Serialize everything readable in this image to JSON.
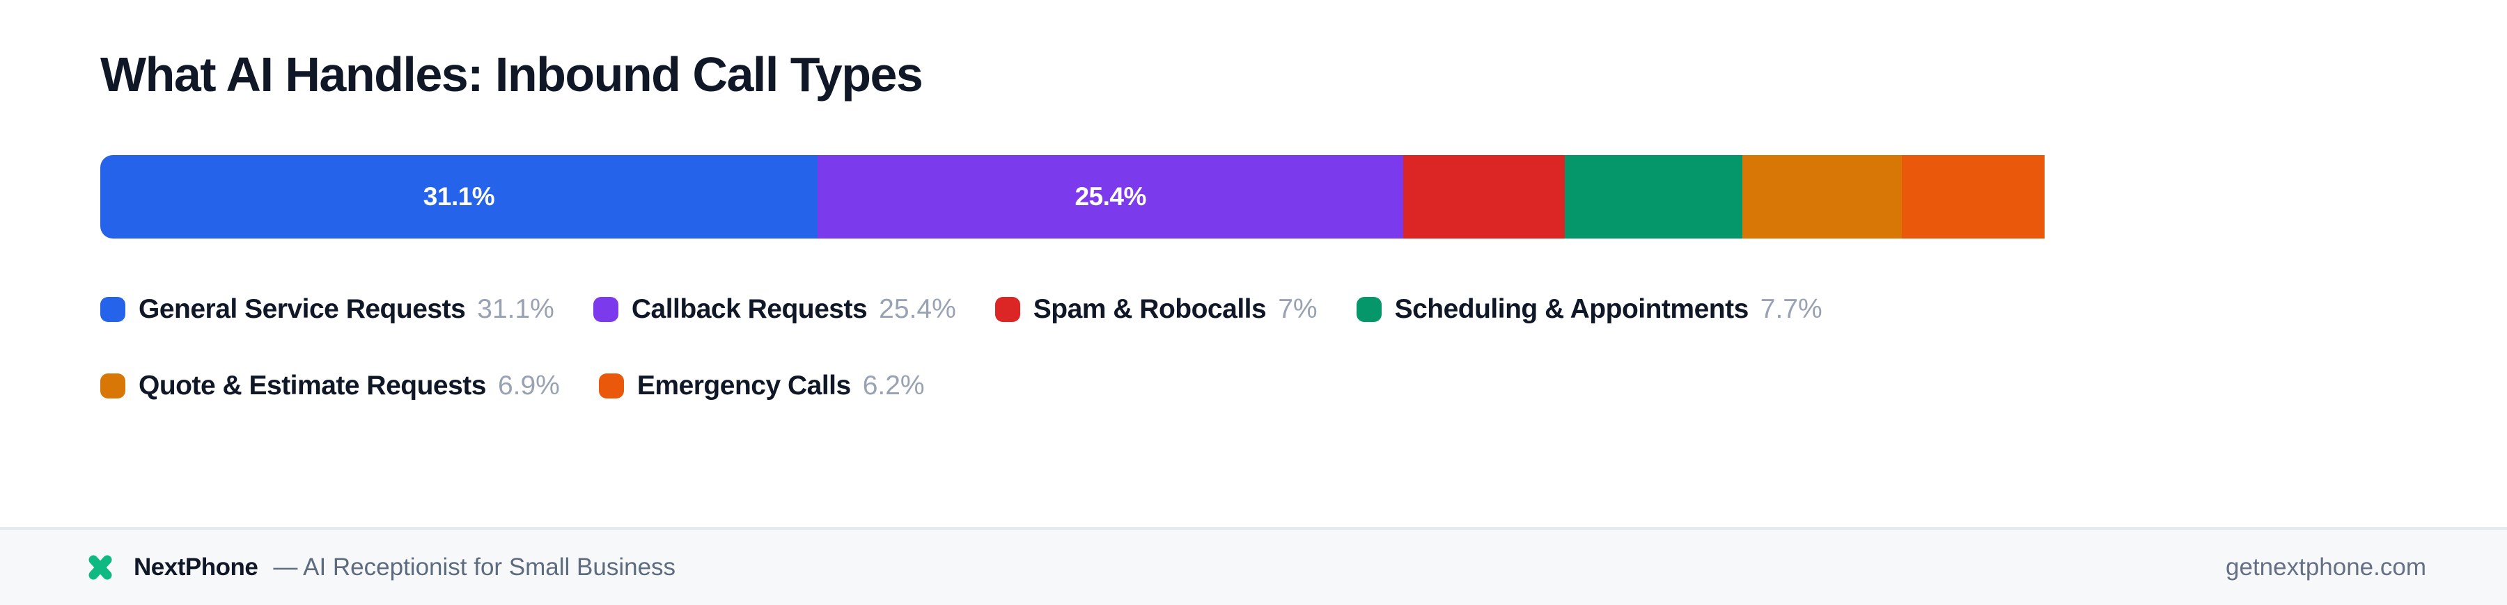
{
  "title": "What AI Handles: Inbound Call Types",
  "chart_data": {
    "type": "bar",
    "variant": "horizontal-stacked-single-bar",
    "title": "What AI Handles: Inbound Call Types",
    "unit": "%",
    "axis": "segments sized as percent of full content width; total 84.3% so bar ends short of right edge",
    "categories": [
      "General Service Requests",
      "Callback Requests",
      "Spam & Robocalls",
      "Scheduling & Appointments",
      "Quote & Estimate Requests",
      "Emergency Calls"
    ],
    "values": [
      31.1,
      25.4,
      7,
      7.7,
      6.9,
      6.2
    ],
    "segments": [
      {
        "label": "General Service Requests",
        "value": 31.1,
        "display": "31.1%",
        "color": "#2563eb",
        "bar_label_visible": true
      },
      {
        "label": "Callback Requests",
        "value": 25.4,
        "display": "25.4%",
        "color": "#7c3aed",
        "bar_label_visible": true
      },
      {
        "label": "Spam & Robocalls",
        "value": 7,
        "display": "7%",
        "color": "#dc2626",
        "bar_label_visible": false
      },
      {
        "label": "Scheduling & Appointments",
        "value": 7.7,
        "display": "7.7%",
        "color": "#059669",
        "bar_label_visible": false
      },
      {
        "label": "Quote & Estimate Requests",
        "value": 6.9,
        "display": "6.9%",
        "color": "#d97706",
        "bar_label_visible": false
      },
      {
        "label": "Emergency Calls",
        "value": 6.2,
        "display": "6.2%",
        "color": "#ea580c",
        "bar_label_visible": false
      }
    ],
    "legend_position": "below-bar, two rows (4 items then 2 items)"
  },
  "colors": {
    "title_text": "#101828",
    "legend_pct_text": "#98a2b3",
    "footer_bg": "#f7f8fa",
    "footer_border": "#e5e8ec",
    "brand_green": "#10b981"
  },
  "footer": {
    "logo_icon": "x-cross-icon",
    "brand": "NextPhone",
    "tagline": "— AI Receptionist for Small Business",
    "url": "getnextphone.com"
  }
}
